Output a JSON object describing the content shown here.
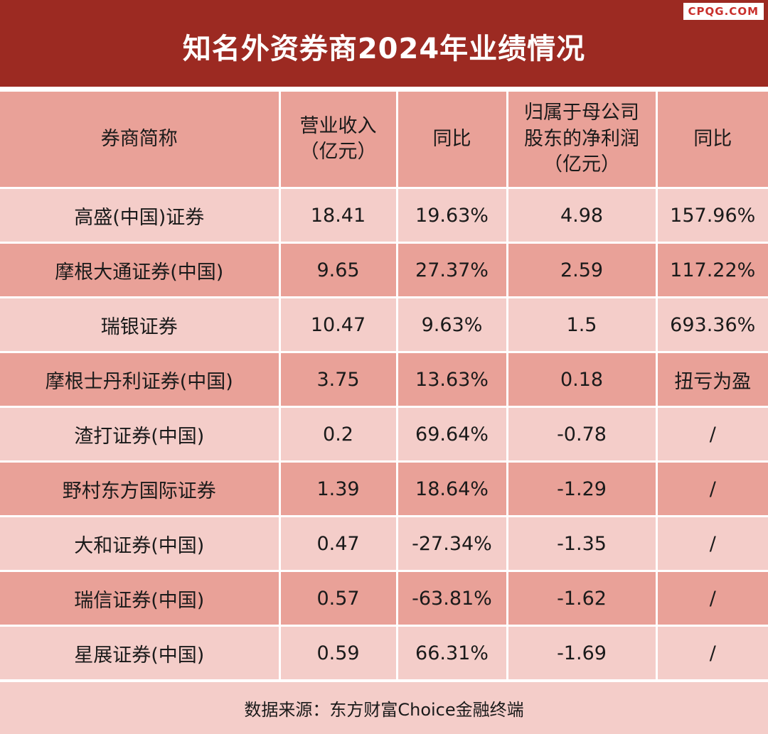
{
  "title": "知名外资券商2024年业绩情况",
  "watermark": "CPQG.COM",
  "table": {
    "headers": [
      [
        "券商简称"
      ],
      [
        "营业收入",
        "（亿元）"
      ],
      [
        "同比"
      ],
      [
        "归属于母公司",
        "股东的净利润",
        "（亿元）"
      ],
      [
        "同比"
      ]
    ],
    "rows": [
      [
        "高盛(中国)证券",
        "18.41",
        "19.63%",
        "4.98",
        "157.96%"
      ],
      [
        "摩根大通证券(中国)",
        "9.65",
        "27.37%",
        "2.59",
        "117.22%"
      ],
      [
        "瑞银证券",
        "10.47",
        "9.63%",
        "1.5",
        "693.36%"
      ],
      [
        "摩根士丹利证券(中国)",
        "3.75",
        "13.63%",
        "0.18",
        "扭亏为盈"
      ],
      [
        "渣打证券(中国)",
        "0.2",
        "69.64%",
        "-0.78",
        "/"
      ],
      [
        "野村东方国际证券",
        "1.39",
        "18.64%",
        "-1.29",
        "/"
      ],
      [
        "大和证券(中国)",
        "0.47",
        "-27.34%",
        "-1.35",
        "/"
      ],
      [
        "瑞信证券(中国)",
        "0.57",
        "-63.81%",
        "-1.62",
        "/"
      ],
      [
        "星展证券(中国)",
        "0.59",
        "66.31%",
        "-1.69",
        "/"
      ]
    ]
  },
  "footer": "数据来源：东方财富Choice金融终端"
}
